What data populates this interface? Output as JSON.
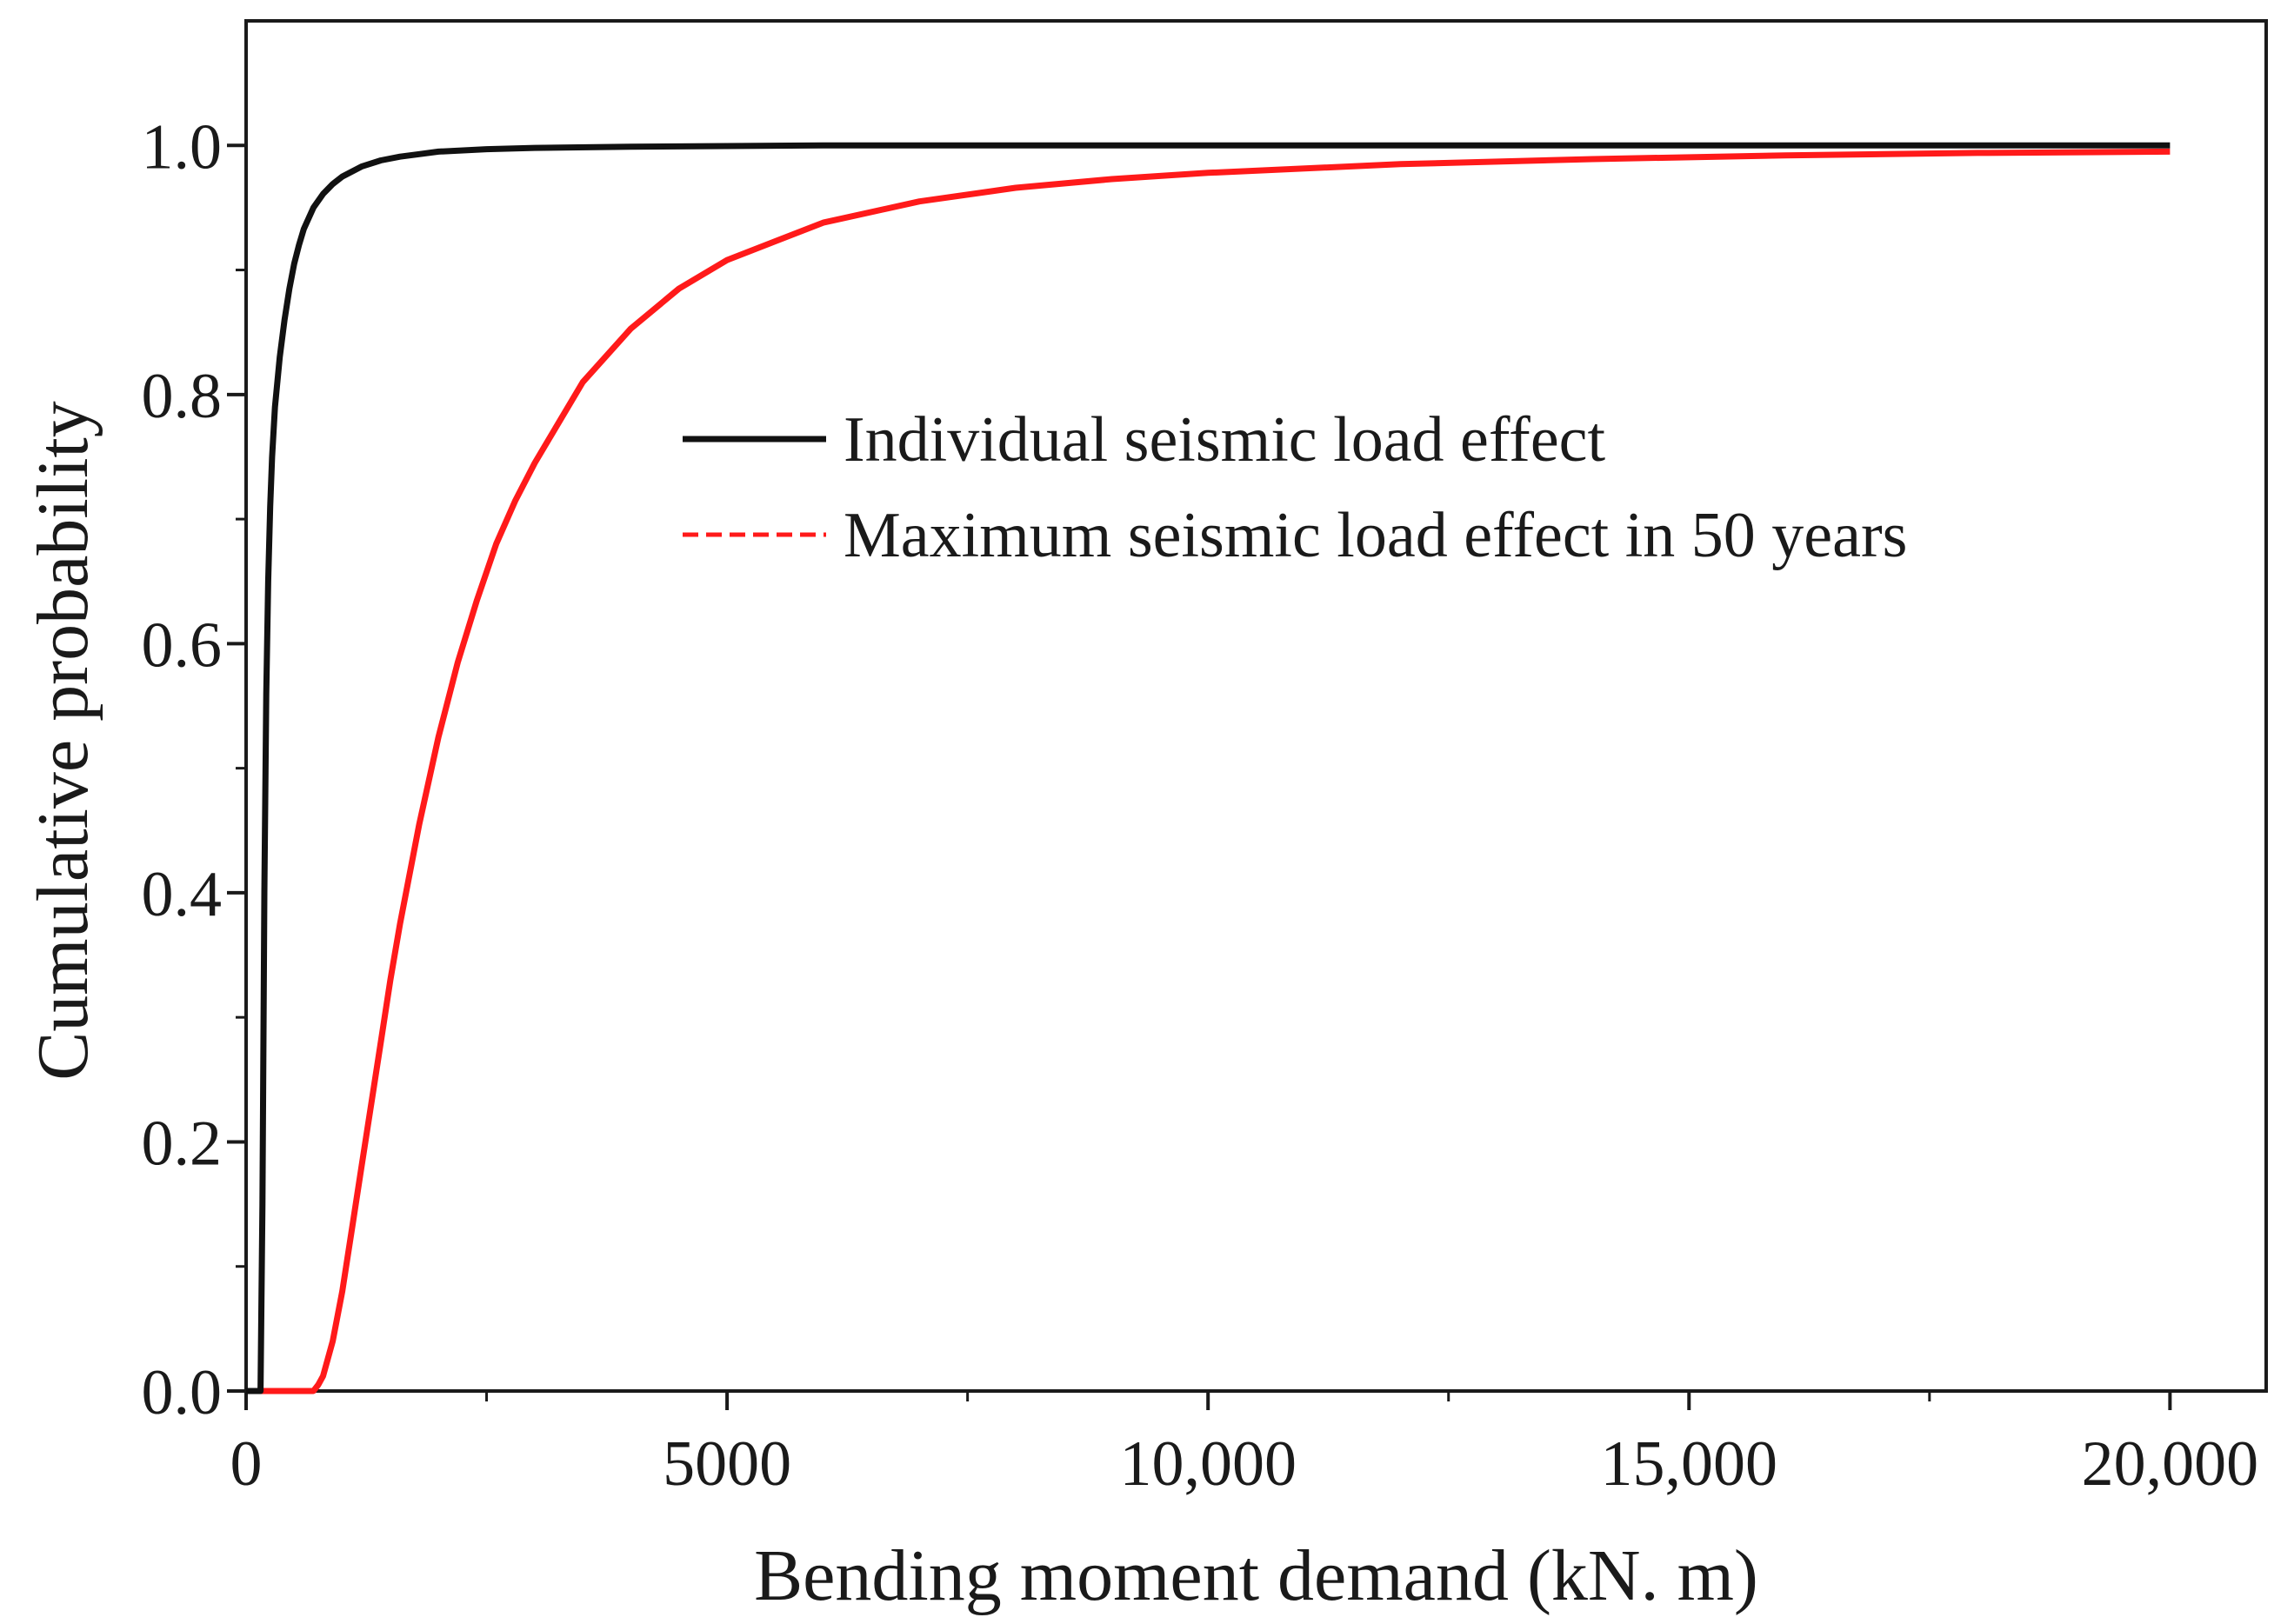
{
  "chart_data": {
    "type": "line",
    "title": "",
    "xlabel": "Bending moment demand (kN. m)",
    "ylabel": "Cumulative probability",
    "xlim": [
      0,
      21000
    ],
    "ylim": [
      0,
      1.1
    ],
    "x_ticks": [
      {
        "value": 0,
        "label": "0"
      },
      {
        "value": 5000,
        "label": "5000"
      },
      {
        "value": 10000,
        "label": "10,000"
      },
      {
        "value": 15000,
        "label": "15,000"
      },
      {
        "value": 20000,
        "label": "20,000"
      }
    ],
    "y_ticks": [
      {
        "value": 0.0,
        "label": "0.0"
      },
      {
        "value": 0.2,
        "label": "0.2"
      },
      {
        "value": 0.4,
        "label": "0.4"
      },
      {
        "value": 0.6,
        "label": "0.6"
      },
      {
        "value": 0.8,
        "label": "0.8"
      },
      {
        "value": 1.0,
        "label": "1.0"
      }
    ],
    "grid": false,
    "legend_position": "center-right",
    "series": [
      {
        "name": "Individual seismic load effect",
        "color": "#111111",
        "line_style": "solid",
        "x": [
          0,
          150,
          170,
          190,
          210,
          230,
          250,
          270,
          300,
          350,
          400,
          450,
          500,
          550,
          600,
          700,
          800,
          900,
          1000,
          1200,
          1400,
          1600,
          1800,
          2000,
          2500,
          3000,
          4000,
          6000,
          8000,
          10000,
          15000,
          20000
        ],
        "y": [
          0.0,
          0.0,
          0.15,
          0.4,
          0.56,
          0.65,
          0.71,
          0.75,
          0.79,
          0.83,
          0.86,
          0.885,
          0.905,
          0.92,
          0.933,
          0.95,
          0.961,
          0.969,
          0.975,
          0.983,
          0.988,
          0.991,
          0.993,
          0.995,
          0.997,
          0.998,
          0.999,
          1.0,
          1.0,
          1.0,
          1.0,
          1.0
        ]
      },
      {
        "name": "Maximum seismic load effect in 50 years",
        "color": "#ff1a1a",
        "line_style": "solid",
        "x": [
          0,
          600,
          700,
          750,
          800,
          900,
          1000,
          1100,
          1200,
          1300,
          1400,
          1500,
          1600,
          1800,
          2000,
          2200,
          2400,
          2600,
          2800,
          3000,
          3500,
          4000,
          4500,
          5000,
          6000,
          7000,
          8000,
          9000,
          10000,
          12000,
          14000,
          16000,
          18000,
          20000
        ],
        "y": [
          0.0,
          0.0,
          0.0,
          0.005,
          0.012,
          0.04,
          0.08,
          0.13,
          0.18,
          0.23,
          0.28,
          0.33,
          0.375,
          0.455,
          0.525,
          0.585,
          0.635,
          0.68,
          0.715,
          0.745,
          0.81,
          0.853,
          0.885,
          0.908,
          0.938,
          0.955,
          0.966,
          0.973,
          0.978,
          0.985,
          0.989,
          0.992,
          0.994,
          0.995
        ]
      }
    ]
  }
}
